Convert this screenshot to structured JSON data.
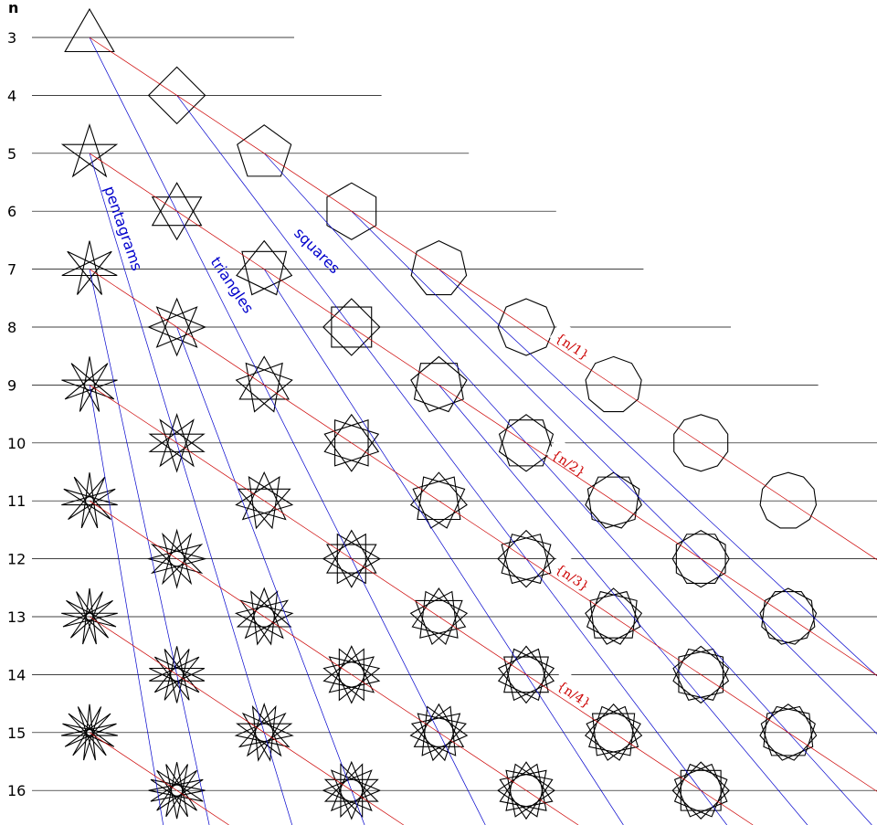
{
  "header": {
    "n_label": "n"
  },
  "rows": [
    3,
    4,
    5,
    6,
    7,
    8,
    9,
    10,
    11,
    12,
    13,
    14,
    15,
    16
  ],
  "family_labels": [
    {
      "key": "pentagrams",
      "text": "pentagrams"
    },
    {
      "key": "triangles",
      "text": "triangles"
    },
    {
      "key": "squares",
      "text": "squares"
    }
  ],
  "series_labels": [
    {
      "key": "n1",
      "text": "{n/1}"
    },
    {
      "key": "n2",
      "text": "{n/2}"
    },
    {
      "key": "n3",
      "text": "{n/3}"
    },
    {
      "key": "n4",
      "text": "{n/4}"
    }
  ],
  "colors": {
    "grid": "#000000",
    "family": "#0000cc",
    "series": "#cc0000",
    "shape": "#000000"
  }
}
